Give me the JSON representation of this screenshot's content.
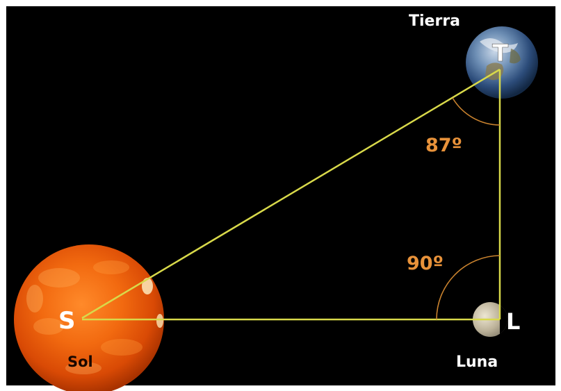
{
  "bodies": {
    "earth": {
      "name": "Tierra",
      "letter": "T"
    },
    "sun": {
      "name": "Sol",
      "letter": "S"
    },
    "moon": {
      "name": "Luna",
      "letter": "L"
    }
  },
  "angles": {
    "at_earth": "87º",
    "at_moon": "90º"
  },
  "colors": {
    "background": "#000000",
    "lines": "#d8d94a",
    "angle_arcs": "#c9822e",
    "angle_text": "#e8923a",
    "labels": "#ffffff"
  }
}
